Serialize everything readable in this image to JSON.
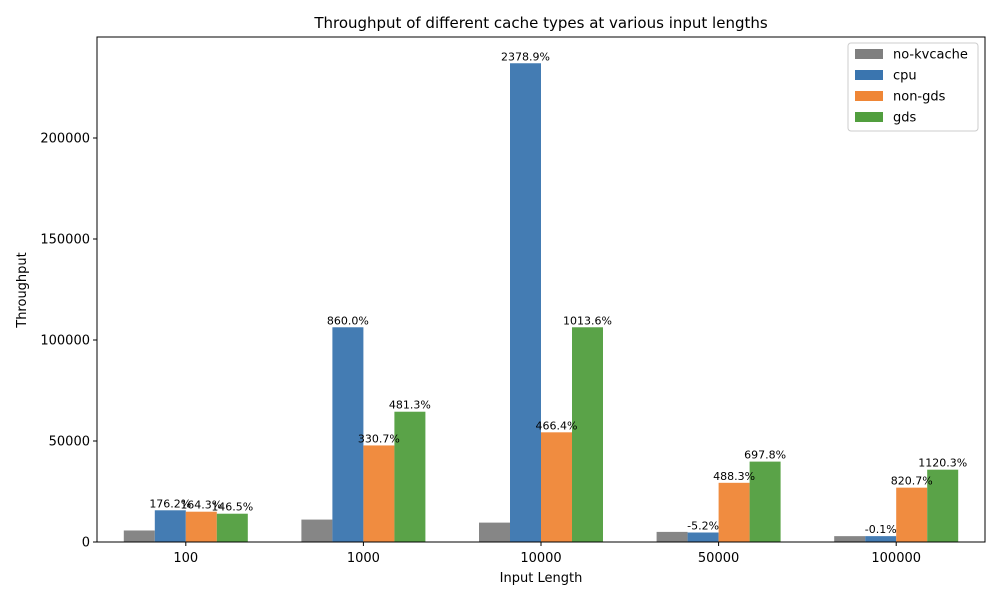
{
  "chart_data": {
    "type": "bar",
    "title": "Throughput of different cache types at various input lengths",
    "xlabel": "Input Length",
    "ylabel": "Throughput",
    "ylim": [
      0,
      250000
    ],
    "yticks": [
      0,
      50000,
      100000,
      150000,
      200000
    ],
    "grid": false,
    "legend_position": "top-right",
    "categories": [
      "100",
      "1000",
      "10000",
      "50000",
      "100000"
    ],
    "series": [
      {
        "name": "no-kvcache",
        "color": "#7f7f7f",
        "values": [
          5700,
          11100,
          9600,
          5000,
          2900
        ],
        "labels": [
          "",
          "",
          "",
          "",
          ""
        ]
      },
      {
        "name": "cpu",
        "color": "#3a75af",
        "values": [
          15700,
          106300,
          237000,
          4700,
          2900
        ],
        "labels": [
          "176.2%",
          "860.0%",
          "2378.9%",
          "-5.2%",
          "-0.1%"
        ]
      },
      {
        "name": "non-gds",
        "color": "#ef8636",
        "values": [
          15000,
          47800,
          54300,
          29300,
          26900
        ],
        "labels": [
          "164.3%",
          "330.7%",
          "466.4%",
          "488.3%",
          "820.7%"
        ]
      },
      {
        "name": "gds",
        "color": "#519e3e",
        "values": [
          14000,
          64500,
          106300,
          39800,
          35800
        ],
        "labels": [
          "146.5%",
          "481.3%",
          "1013.6%",
          "697.8%",
          "1120.3%"
        ]
      }
    ]
  }
}
